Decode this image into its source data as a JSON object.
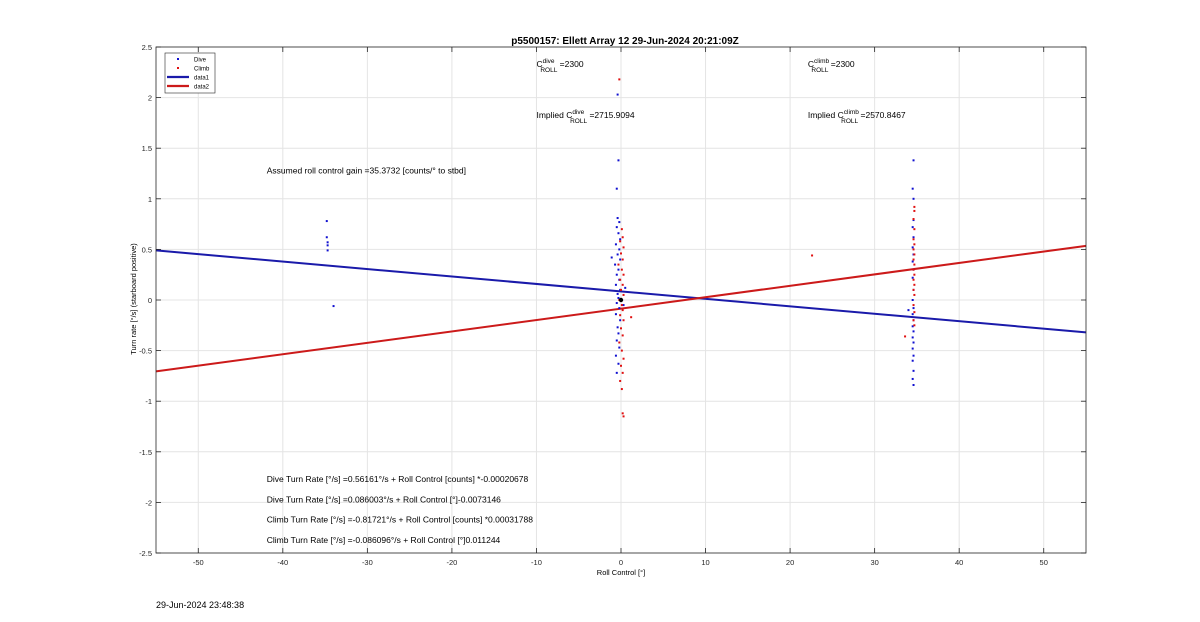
{
  "chart_data": {
    "type": "scatter",
    "title": "p5500157: Ellett Array 12 29-Jun-2024 20:21:09Z",
    "xlabel": "Roll Control [°]",
    "ylabel": "Turn rate [°/s] (starboard positive)",
    "xlim": [
      -55,
      55
    ],
    "ylim": [
      -2.5,
      2.5
    ],
    "xticks": [
      -50,
      -40,
      -30,
      -20,
      -10,
      0,
      10,
      20,
      30,
      40,
      50
    ],
    "yticks": [
      -2.5,
      -2,
      -1.5,
      -1,
      -0.5,
      0,
      0.5,
      1,
      1.5,
      2,
      2.5
    ],
    "grid": true,
    "legend": {
      "position": "top-left",
      "entries": [
        {
          "label": "Dive",
          "kind": "marker",
          "color": "#1010d0"
        },
        {
          "label": "Climb",
          "kind": "marker",
          "color": "#e01010"
        },
        {
          "label": "data1",
          "kind": "line",
          "color": "#1a1aaa"
        },
        {
          "label": "data2",
          "kind": "line",
          "color": "#cc1a1a"
        }
      ]
    },
    "series": [
      {
        "name": "Dive",
        "color": "#1010d0",
        "points": [
          [
            -34.8,
            0.78
          ],
          [
            -34.8,
            0.62
          ],
          [
            -34.7,
            0.57
          ],
          [
            -34.7,
            0.54
          ],
          [
            -34.7,
            0.49
          ],
          [
            -34.0,
            -0.06
          ],
          [
            -0.4,
            2.03
          ],
          [
            -0.3,
            1.38
          ],
          [
            -0.5,
            1.1
          ],
          [
            -0.4,
            0.81
          ],
          [
            -0.2,
            0.77
          ],
          [
            -0.5,
            0.72
          ],
          [
            -0.3,
            0.66
          ],
          [
            -0.1,
            0.6
          ],
          [
            -0.6,
            0.55
          ],
          [
            -0.2,
            0.5
          ],
          [
            -0.4,
            0.45
          ],
          [
            -0.1,
            0.4
          ],
          [
            -0.7,
            0.35
          ],
          [
            -0.3,
            0.3
          ],
          [
            -0.5,
            0.25
          ],
          [
            -0.2,
            0.2
          ],
          [
            -0.6,
            0.15
          ],
          [
            -0.1,
            0.1
          ],
          [
            -0.4,
            0.06
          ],
          [
            -0.3,
            0.02
          ],
          [
            -0.5,
            -0.03
          ],
          [
            -0.2,
            -0.08
          ],
          [
            -0.6,
            -0.14
          ],
          [
            -0.1,
            -0.2
          ],
          [
            -0.4,
            -0.27
          ],
          [
            -0.3,
            -0.33
          ],
          [
            -0.5,
            -0.4
          ],
          [
            -0.2,
            -0.47
          ],
          [
            -0.6,
            -0.55
          ],
          [
            -0.3,
            -0.63
          ],
          [
            -0.5,
            -0.72
          ],
          [
            -1.1,
            0.42
          ],
          [
            0.3,
            -0.05
          ],
          [
            0.5,
            0.12
          ],
          [
            34.6,
            1.38
          ],
          [
            34.5,
            1.1
          ],
          [
            34.6,
            1.0
          ],
          [
            34.6,
            0.79
          ],
          [
            34.5,
            0.72
          ],
          [
            34.6,
            0.62
          ],
          [
            34.5,
            0.52
          ],
          [
            34.6,
            0.45
          ],
          [
            34.5,
            0.38
          ],
          [
            34.6,
            0.3
          ],
          [
            34.5,
            0.22
          ],
          [
            34.6,
            0.1
          ],
          [
            34.5,
            0.0
          ],
          [
            34.6,
            -0.08
          ],
          [
            34.5,
            -0.14
          ],
          [
            34.6,
            -0.2
          ],
          [
            34.5,
            -0.26
          ],
          [
            34.6,
            -0.31
          ],
          [
            34.5,
            -0.37
          ],
          [
            34.6,
            -0.42
          ],
          [
            34.5,
            -0.48
          ],
          [
            34.6,
            -0.55
          ],
          [
            34.5,
            -0.6
          ],
          [
            34.6,
            -0.7
          ],
          [
            34.5,
            -0.78
          ],
          [
            34.6,
            -0.84
          ],
          [
            34.0,
            -0.1
          ]
        ]
      },
      {
        "name": "Climb",
        "color": "#e01010",
        "points": [
          [
            -0.2,
            2.18
          ],
          [
            0.1,
            0.7
          ],
          [
            0.2,
            0.62
          ],
          [
            -0.1,
            0.58
          ],
          [
            0.3,
            0.52
          ],
          [
            0.0,
            0.46
          ],
          [
            0.2,
            0.4
          ],
          [
            -0.3,
            0.35
          ],
          [
            0.1,
            0.3
          ],
          [
            0.3,
            0.25
          ],
          [
            -0.1,
            0.2
          ],
          [
            0.2,
            0.15
          ],
          [
            0.0,
            0.1
          ],
          [
            0.3,
            0.05
          ],
          [
            -0.2,
            0.0
          ],
          [
            0.1,
            -0.05
          ],
          [
            0.2,
            -0.1
          ],
          [
            -0.1,
            -0.15
          ],
          [
            0.3,
            -0.2
          ],
          [
            0.0,
            -0.28
          ],
          [
            0.2,
            -0.35
          ],
          [
            -0.2,
            -0.42
          ],
          [
            0.1,
            -0.5
          ],
          [
            0.3,
            -0.58
          ],
          [
            0.0,
            -0.65
          ],
          [
            0.2,
            -0.72
          ],
          [
            -0.1,
            -0.8
          ],
          [
            0.1,
            -0.88
          ],
          [
            0.2,
            -1.12
          ],
          [
            0.3,
            -1.15
          ],
          [
            1.2,
            -0.17
          ],
          [
            22.6,
            0.44
          ],
          [
            34.7,
            0.92
          ],
          [
            34.7,
            0.88
          ],
          [
            34.6,
            0.8
          ],
          [
            34.7,
            0.7
          ],
          [
            34.6,
            0.6
          ],
          [
            34.7,
            0.55
          ],
          [
            34.6,
            0.5
          ],
          [
            34.7,
            0.45
          ],
          [
            34.6,
            0.4
          ],
          [
            34.7,
            0.35
          ],
          [
            34.6,
            0.3
          ],
          [
            34.7,
            0.25
          ],
          [
            34.6,
            0.2
          ],
          [
            34.7,
            0.15
          ],
          [
            34.6,
            0.1
          ],
          [
            34.7,
            0.05
          ],
          [
            34.6,
            -0.05
          ],
          [
            34.7,
            -0.12
          ],
          [
            34.6,
            -0.2
          ],
          [
            34.7,
            -0.25
          ],
          [
            33.6,
            -0.36
          ]
        ]
      },
      {
        "name": "data1",
        "kind": "line",
        "color": "#1a1aaa",
        "points": [
          [
            -55,
            0.49
          ],
          [
            55,
            -0.32
          ]
        ]
      },
      {
        "name": "data2",
        "kind": "line",
        "color": "#cc1a1a",
        "points": [
          [
            -55,
            -0.705
          ],
          [
            55,
            0.535
          ]
        ]
      }
    ],
    "origin_marker": [
      0,
      0
    ],
    "annotations": [
      {
        "id": "cdive",
        "main": "C",
        "sup": "dive",
        "sub": "ROLL",
        "suffix": " =2300",
        "x": -10,
        "y": 2.3
      },
      {
        "id": "cclimb",
        "main": "C",
        "sup": "climb",
        "sub": "ROLL",
        "suffix": " =2300",
        "x": 22.1,
        "y": 2.3
      },
      {
        "id": "implied-dive",
        "prefix": "Implied ",
        "main": "C",
        "sup": "dive",
        "sub": "ROLL",
        "suffix": " =2715.9094",
        "x": -10,
        "y": 1.8
      },
      {
        "id": "implied-climb",
        "prefix": "Implied ",
        "main": "C",
        "sup": "climb",
        "sub": "ROLL",
        "suffix": " =2570.8467",
        "x": 22.1,
        "y": 1.8
      },
      {
        "id": "gain",
        "text": "Assumed roll control gain =35.3732 [counts/° to stbd]",
        "x": -41.9,
        "y": 1.25
      },
      {
        "id": "eq1",
        "text": "Dive Turn Rate [°/s] =0.56161°/s + Roll Control [counts] *-0.00020678",
        "x": -41.9,
        "y": -1.8
      },
      {
        "id": "eq2",
        "text": "Dive Turn Rate [°/s] =0.086003°/s + Roll Control [°]-0.0073146",
        "x": -41.9,
        "y": -2.0
      },
      {
        "id": "eq3",
        "text": "Climb Turn Rate [°/s] =-0.81721°/s + Roll Control [counts] *0.00031788",
        "x": -41.9,
        "y": -2.2
      },
      {
        "id": "eq4",
        "text": "Climb Turn Rate [°/s] =-0.086096°/s + Roll Control [°]0.011244",
        "x": -41.9,
        "y": -2.4
      }
    ]
  },
  "footer_timestamp": "29-Jun-2024 23:48:38"
}
